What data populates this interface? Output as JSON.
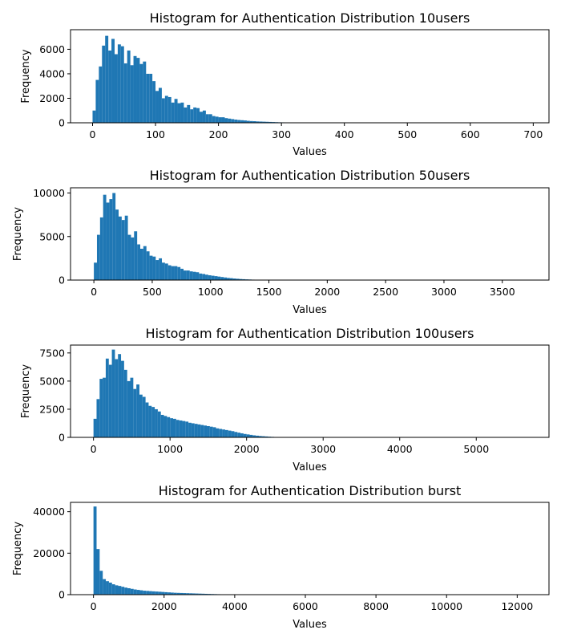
{
  "figure": {
    "bar_color": "#1f77b4"
  },
  "chart_data": [
    {
      "type": "bar",
      "title": "Histogram for Authentication Distribution 10users",
      "xlabel": "Values",
      "ylabel": "Frequency",
      "xlim": [
        -35,
        725
      ],
      "ylim": [
        0,
        7600
      ],
      "xticks": [
        0,
        100,
        200,
        300,
        400,
        500,
        600,
        700
      ],
      "yticks": [
        0,
        2000,
        4000,
        6000
      ],
      "bin_start": 0,
      "bin_width": 5,
      "values": [
        1000,
        3500,
        4600,
        6300,
        7100,
        5900,
        6850,
        5600,
        6400,
        6250,
        4850,
        5900,
        4700,
        5450,
        5300,
        4800,
        5000,
        4000,
        4000,
        3400,
        2600,
        2850,
        2000,
        2200,
        2100,
        1650,
        1950,
        1600,
        1650,
        1250,
        1450,
        1100,
        1250,
        1200,
        900,
        1000,
        700,
        700,
        550,
        500,
        450,
        450,
        380,
        340,
        300,
        260,
        230,
        210,
        190,
        160,
        140,
        130,
        110,
        100,
        90,
        80,
        70,
        60,
        50,
        40,
        35,
        30,
        25,
        20,
        18,
        15,
        12,
        10,
        8,
        6,
        5,
        4,
        3,
        2,
        2,
        1,
        1,
        1,
        1,
        1,
        1,
        1,
        1,
        1,
        1,
        1,
        1,
        1,
        1,
        1,
        1,
        1,
        1,
        1,
        1,
        1,
        1,
        1,
        1,
        1,
        1,
        1,
        1,
        1,
        1,
        1,
        1,
        1,
        1,
        1,
        1,
        1,
        1,
        1,
        1,
        1,
        1,
        1,
        1,
        1,
        1,
        1,
        1,
        1,
        1,
        1,
        1,
        1,
        1,
        1,
        1,
        1,
        1,
        1,
        1,
        1,
        1,
        1,
        1,
        1
      ]
    },
    {
      "type": "bar",
      "title": "Histogram for Authentication Distribution 50users",
      "xlabel": "Values",
      "ylabel": "Frequency",
      "xlim": [
        -200,
        3900
      ],
      "ylim": [
        0,
        10600
      ],
      "xticks": [
        0,
        500,
        1000,
        1500,
        2000,
        2500,
        3000,
        3500
      ],
      "yticks": [
        0,
        5000,
        10000
      ],
      "bin_start": 0,
      "bin_width": 26.5,
      "values": [
        2000,
        5200,
        7200,
        9800,
        8900,
        9300,
        10000,
        8100,
        7300,
        6900,
        7400,
        5200,
        4900,
        5600,
        4100,
        3600,
        3900,
        3300,
        2800,
        2700,
        2300,
        2500,
        2000,
        1900,
        1700,
        1600,
        1600,
        1500,
        1300,
        1100,
        1100,
        1000,
        950,
        900,
        750,
        700,
        620,
        550,
        500,
        450,
        400,
        350,
        300,
        250,
        220,
        180,
        150,
        120,
        100,
        80,
        65,
        50,
        40,
        30,
        25,
        20,
        15,
        12,
        10,
        8,
        6,
        5,
        4,
        3,
        2,
        2,
        1,
        1,
        1,
        1,
        1,
        1,
        1,
        1,
        1,
        1,
        1,
        1,
        1,
        1,
        1,
        1,
        1,
        1,
        1,
        1,
        1,
        1,
        1,
        1,
        1,
        1,
        1,
        1,
        1,
        1,
        1,
        1,
        1,
        1,
        1,
        1,
        1,
        1,
        1,
        1,
        1,
        1,
        1,
        1,
        1,
        1,
        1,
        1,
        1,
        1,
        1,
        1,
        1,
        1,
        1,
        1,
        1,
        1,
        1,
        1,
        1,
        1,
        1,
        1,
        1,
        1,
        1,
        1,
        1,
        1,
        1,
        1,
        1,
        1,
        1
      ]
    },
    {
      "type": "bar",
      "title": "Histogram for Authentication Distribution 100users",
      "xlabel": "Values",
      "ylabel": "Frequency",
      "xlim": [
        -300,
        5950
      ],
      "ylim": [
        0,
        8200
      ],
      "xticks": [
        0,
        1000,
        2000,
        3000,
        4000,
        5000
      ],
      "yticks": [
        0,
        2500,
        5000,
        7500
      ],
      "bin_start": 0,
      "bin_width": 40,
      "values": [
        1650,
        3400,
        5200,
        5300,
        7000,
        6450,
        7800,
        6950,
        7400,
        6800,
        6000,
        5000,
        5300,
        4300,
        4700,
        3800,
        3600,
        3100,
        2800,
        2700,
        2500,
        2300,
        2000,
        1900,
        1800,
        1700,
        1650,
        1550,
        1500,
        1450,
        1400,
        1300,
        1250,
        1200,
        1150,
        1100,
        1050,
        1000,
        950,
        900,
        800,
        750,
        700,
        650,
        600,
        550,
        480,
        420,
        360,
        300,
        260,
        220,
        180,
        150,
        120,
        100,
        80,
        60,
        45,
        35,
        25,
        18,
        12,
        8,
        5,
        3,
        2,
        1,
        1,
        1,
        1,
        1,
        1,
        1,
        1,
        1,
        1,
        1,
        1,
        1,
        1,
        1,
        1,
        1,
        1,
        1,
        1,
        1,
        1,
        1,
        1,
        1,
        1,
        1,
        1,
        1,
        1,
        1,
        1,
        1,
        1,
        1,
        1,
        1,
        1,
        1,
        1,
        1,
        1,
        1,
        1,
        1,
        1,
        1,
        1,
        1,
        1,
        1,
        1,
        1,
        1,
        1,
        1,
        1,
        1,
        1,
        1,
        1,
        1,
        1,
        1,
        1,
        1,
        1,
        1,
        1,
        1,
        1
      ]
    },
    {
      "type": "bar",
      "title": "Histogram for Authentication Distribution burst",
      "xlabel": "Values",
      "ylabel": "Frequency",
      "xlim": [
        -650,
        12900
      ],
      "ylim": [
        0,
        44500
      ],
      "xticks": [
        0,
        2000,
        4000,
        6000,
        8000,
        10000,
        12000
      ],
      "yticks": [
        0,
        20000,
        40000
      ],
      "bin_start": 0,
      "bin_width": 87.5,
      "values": [
        42500,
        22000,
        11500,
        7500,
        6500,
        5800,
        5000,
        4500,
        4200,
        3800,
        3400,
        3100,
        2800,
        2500,
        2300,
        2100,
        1900,
        1800,
        1700,
        1600,
        1500,
        1400,
        1300,
        1200,
        1100,
        1000,
        900,
        850,
        800,
        750,
        700,
        650,
        600,
        550,
        500,
        450,
        400,
        350,
        300,
        260,
        220,
        190,
        160,
        130,
        110,
        90,
        70,
        55,
        40,
        30,
        22,
        16,
        12,
        9,
        6,
        4,
        3,
        2,
        1,
        1,
        1,
        1,
        1,
        1,
        1,
        1,
        1,
        1,
        1,
        1,
        1,
        1,
        1,
        1,
        1,
        1,
        1,
        1,
        1,
        1,
        1,
        1,
        1,
        1,
        1,
        1,
        1,
        1,
        1,
        1,
        1,
        1,
        1,
        1,
        1,
        1,
        1,
        1,
        1,
        1,
        1,
        1,
        1,
        1,
        1,
        1,
        1,
        1,
        1,
        1,
        1,
        1,
        1,
        1,
        1,
        1,
        1,
        1,
        1,
        1,
        1,
        1,
        1,
        1,
        1,
        1,
        1,
        1,
        1,
        1,
        1,
        1,
        1,
        1,
        1,
        1,
        1,
        1,
        1,
        1
      ]
    }
  ]
}
